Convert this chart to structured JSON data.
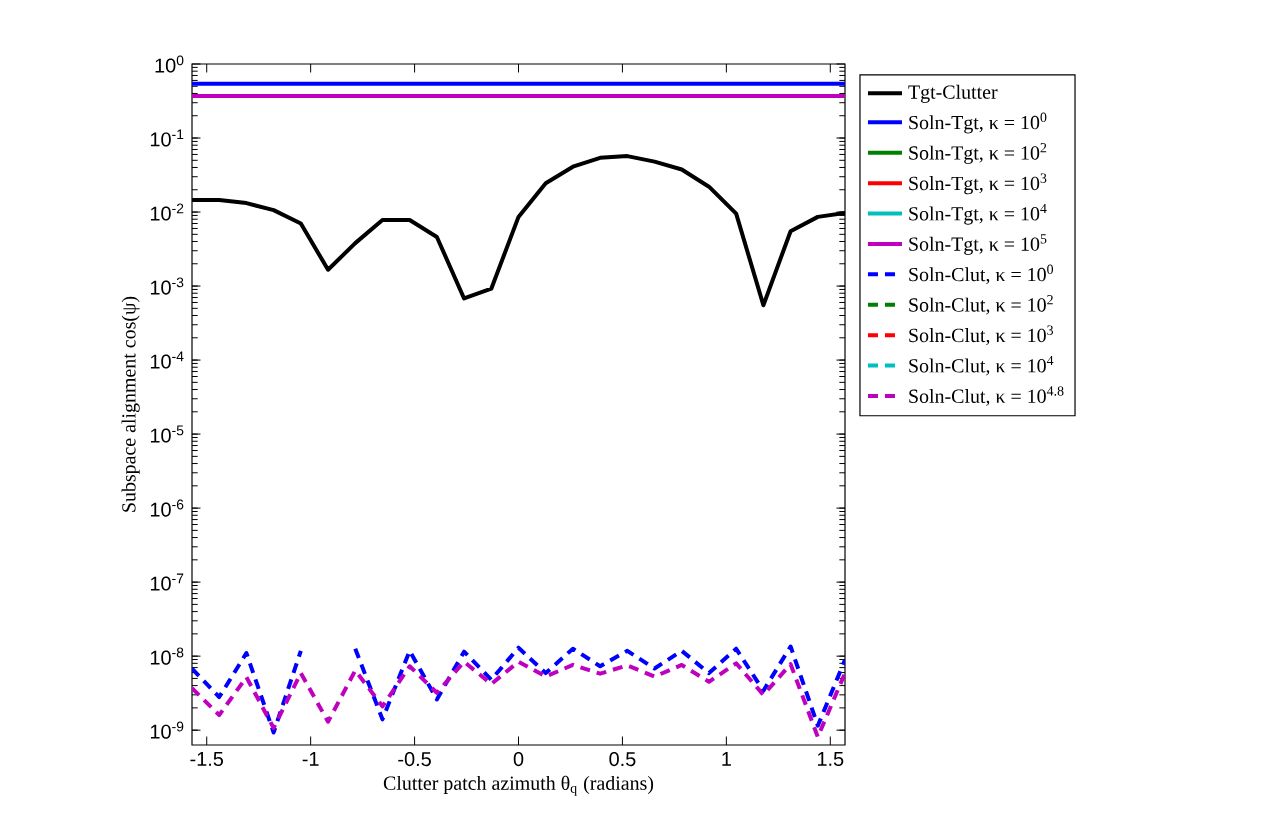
{
  "chart_data": {
    "type": "line",
    "xlabel": "Clutter patch azimuth θ$_{q}$ (radians)",
    "ylabel": "Subspace alignment cos(ψ)",
    "x": [
      -1.5708,
      -1.4399,
      -1.309,
      -1.1781,
      -1.0472,
      -0.9163,
      -0.7854,
      -0.6545,
      -0.5236,
      -0.3927,
      -0.2618,
      -0.1309,
      0,
      0.1309,
      0.2618,
      0.3927,
      0.5236,
      0.6545,
      0.7854,
      0.9163,
      1.0472,
      1.1781,
      1.309,
      1.4399,
      1.5708
    ],
    "series": [
      {
        "name": "Tgt-Clutter",
        "color": "#000000",
        "line_style": "solid",
        "values": [
          0.0145,
          0.0145,
          0.0132,
          0.0106,
          0.007,
          0.00166,
          0.0038,
          0.0078,
          0.0078,
          0.0046,
          0.00068,
          0.00092,
          0.0086,
          0.0245,
          0.041,
          0.054,
          0.057,
          0.048,
          0.0376,
          0.022,
          0.0095,
          0.00055,
          0.0055,
          0.0086,
          0.0097
        ]
      },
      {
        "name": "Soln-Tgt, κ = 10$^{0}$",
        "color": "#0000ff",
        "line_style": "solid",
        "values": [
          0.54,
          0.54,
          0.54,
          0.54,
          0.54,
          0.54,
          0.54,
          0.54,
          0.54,
          0.54,
          0.54,
          0.54,
          0.54,
          0.54,
          0.54,
          0.54,
          0.54,
          0.54,
          0.54,
          0.54,
          0.54,
          0.54,
          0.54,
          0.54,
          0.54
        ]
      },
      {
        "name": "Soln-Tgt, κ = 10$^{2}$",
        "color": "#008000",
        "line_style": "solid",
        "values": [
          null,
          null,
          null,
          null,
          null,
          null,
          null,
          null,
          null,
          null,
          null,
          null,
          null,
          null,
          null,
          null,
          null,
          null,
          null,
          null,
          null,
          null,
          null,
          null,
          null
        ]
      },
      {
        "name": "Soln-Tgt, κ = 10$^{3}$",
        "color": "#ff0000",
        "line_style": "solid",
        "values": [
          null,
          null,
          null,
          null,
          null,
          null,
          null,
          null,
          null,
          null,
          null,
          null,
          null,
          null,
          null,
          null,
          null,
          null,
          null,
          null,
          null,
          null,
          null,
          null,
          null
        ]
      },
      {
        "name": "Soln-Tgt, κ = 10$^{4}$",
        "color": "#00bfbf",
        "line_style": "solid",
        "values": [
          null,
          null,
          null,
          null,
          null,
          null,
          null,
          null,
          null,
          null,
          null,
          null,
          null,
          null,
          null,
          null,
          null,
          null,
          null,
          null,
          null,
          null,
          null,
          null,
          null
        ]
      },
      {
        "name": "Soln-Tgt, κ = 10$^{5}$",
        "color": "#bf00bf",
        "line_style": "solid",
        "values": [
          0.37,
          0.37,
          0.37,
          0.37,
          0.37,
          0.37,
          0.37,
          0.37,
          0.37,
          0.37,
          0.37,
          0.37,
          0.37,
          0.37,
          0.37,
          0.37,
          0.37,
          0.37,
          0.37,
          0.37,
          0.37,
          0.37,
          0.37,
          0.37,
          0.37
        ]
      },
      {
        "name": "Soln-Clut, κ = 10$^{0}$",
        "color": "#0000ff",
        "line_style": "dashed",
        "values": [
          6.8e-09,
          2.8e-09,
          1.1e-08,
          9.3e-10,
          1.18e-08,
          null,
          1.26e-08,
          1.4e-09,
          1.18e-08,
          2.6e-09,
          1.15e-08,
          4.8e-09,
          1.3e-08,
          5.9e-09,
          1.26e-08,
          7.3e-09,
          1.18e-08,
          6.8e-09,
          1.18e-08,
          5.9e-09,
          1.26e-08,
          3.4e-09,
          1.35e-08,
          1.15e-09,
          8.9e-09
        ]
      },
      {
        "name": "Soln-Clut, κ = 10$^{2}$",
        "color": "#008000",
        "line_style": "dashed",
        "values": [
          null,
          null,
          null,
          null,
          null,
          null,
          null,
          null,
          null,
          null,
          null,
          null,
          null,
          null,
          null,
          null,
          null,
          null,
          null,
          null,
          null,
          null,
          null,
          null,
          null
        ]
      },
      {
        "name": "Soln-Clut, κ = 10$^{3}$",
        "color": "#ff0000",
        "line_style": "dashed",
        "values": [
          null,
          null,
          null,
          null,
          null,
          null,
          null,
          null,
          null,
          null,
          null,
          null,
          null,
          null,
          null,
          null,
          null,
          null,
          null,
          null,
          null,
          null,
          null,
          null,
          null
        ]
      },
      {
        "name": "Soln-Clut, κ = 10$^{4}$",
        "color": "#00bfbf",
        "line_style": "dashed",
        "values": [
          null,
          null,
          null,
          null,
          null,
          null,
          null,
          null,
          null,
          null,
          null,
          null,
          null,
          null,
          null,
          null,
          null,
          null,
          null,
          null,
          null,
          null,
          null,
          null,
          null
        ]
      },
      {
        "name": "Soln-Clut, κ = 10$^{4.8}$",
        "color": "#bf00bf",
        "line_style": "dashed",
        "values": [
          3.7e-09,
          1.6e-09,
          5.2e-09,
          1.07e-09,
          5.9e-09,
          1.3e-09,
          6.4e-09,
          2.1e-09,
          7.3e-09,
          3.2e-09,
          8.4e-09,
          4.2e-09,
          8.4e-09,
          5.3e-09,
          7.6e-09,
          5.8e-09,
          7.5e-09,
          5.3e-09,
          7.6e-09,
          4.5e-09,
          8e-09,
          3e-09,
          7.8e-09,
          8.1e-10,
          5.9e-09
        ]
      }
    ],
    "xlim": [
      -1.5708,
      1.5708
    ],
    "ylim": [
      6.3e-10,
      1
    ],
    "xticks": [
      -1.5,
      -1,
      -0.5,
      0,
      0.5,
      1,
      1.5
    ],
    "yticks": [
      {
        "value": 1e-09,
        "label": "10$^{-9}$"
      },
      {
        "value": 1e-08,
        "label": "10$^{-8}$"
      },
      {
        "value": 1e-07,
        "label": "10$^{-7}$"
      },
      {
        "value": 1e-06,
        "label": "10$^{-6}$"
      },
      {
        "value": 1e-05,
        "label": "10$^{-5}$"
      },
      {
        "value": 0.0001,
        "label": "10$^{-4}$"
      },
      {
        "value": 0.001,
        "label": "10$^{-3}$"
      },
      {
        "value": 0.01,
        "label": "10$^{-2}$"
      },
      {
        "value": 0.1,
        "label": "10$^{-1}$"
      },
      {
        "value": 1,
        "label": "10$^{0}$"
      }
    ],
    "log": true,
    "legend": "top right"
  }
}
